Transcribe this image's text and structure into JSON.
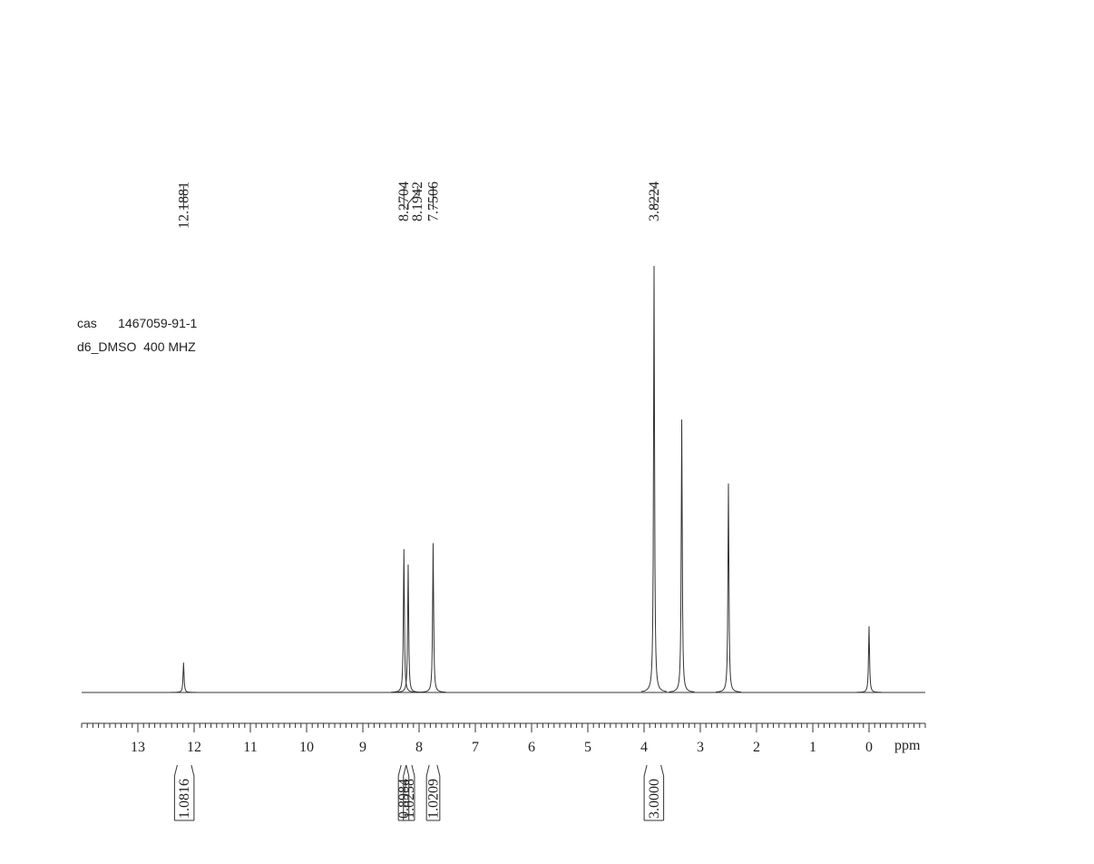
{
  "chart_data": {
    "type": "spectrum",
    "annotations": [
      "cas      1467059-91-1",
      "d6_DMSO  400 MHZ"
    ],
    "x": [
      12.1881,
      8.2704,
      8.1942,
      7.7506,
      3.8224,
      3.33,
      2.5,
      0.0
    ],
    "values": [
      7,
      33.6,
      30,
      35,
      100,
      64,
      49,
      15.5
    ],
    "color": "#333333",
    "peak_labels": [
      12.1881,
      8.2704,
      8.1942,
      7.7506,
      3.8224
    ],
    "integrals": [
      {
        "from": 12.3,
        "to": 12.05,
        "value": 1.0816
      },
      {
        "from": 8.32,
        "to": 8.23,
        "value": 0.8984
      },
      {
        "from": 8.23,
        "to": 8.13,
        "value": 1.0258
      },
      {
        "from": 7.82,
        "to": 7.68,
        "value": 1.0209
      },
      {
        "from": 3.95,
        "to": 3.7,
        "value": 3,
        "label": "3.0000"
      }
    ],
    "xlabel": "ppm",
    "xlim": [
      14,
      -1
    ],
    "xticks": [
      13,
      12,
      11,
      10,
      9,
      8,
      7,
      6,
      5,
      4,
      3,
      2,
      1,
      0
    ]
  }
}
